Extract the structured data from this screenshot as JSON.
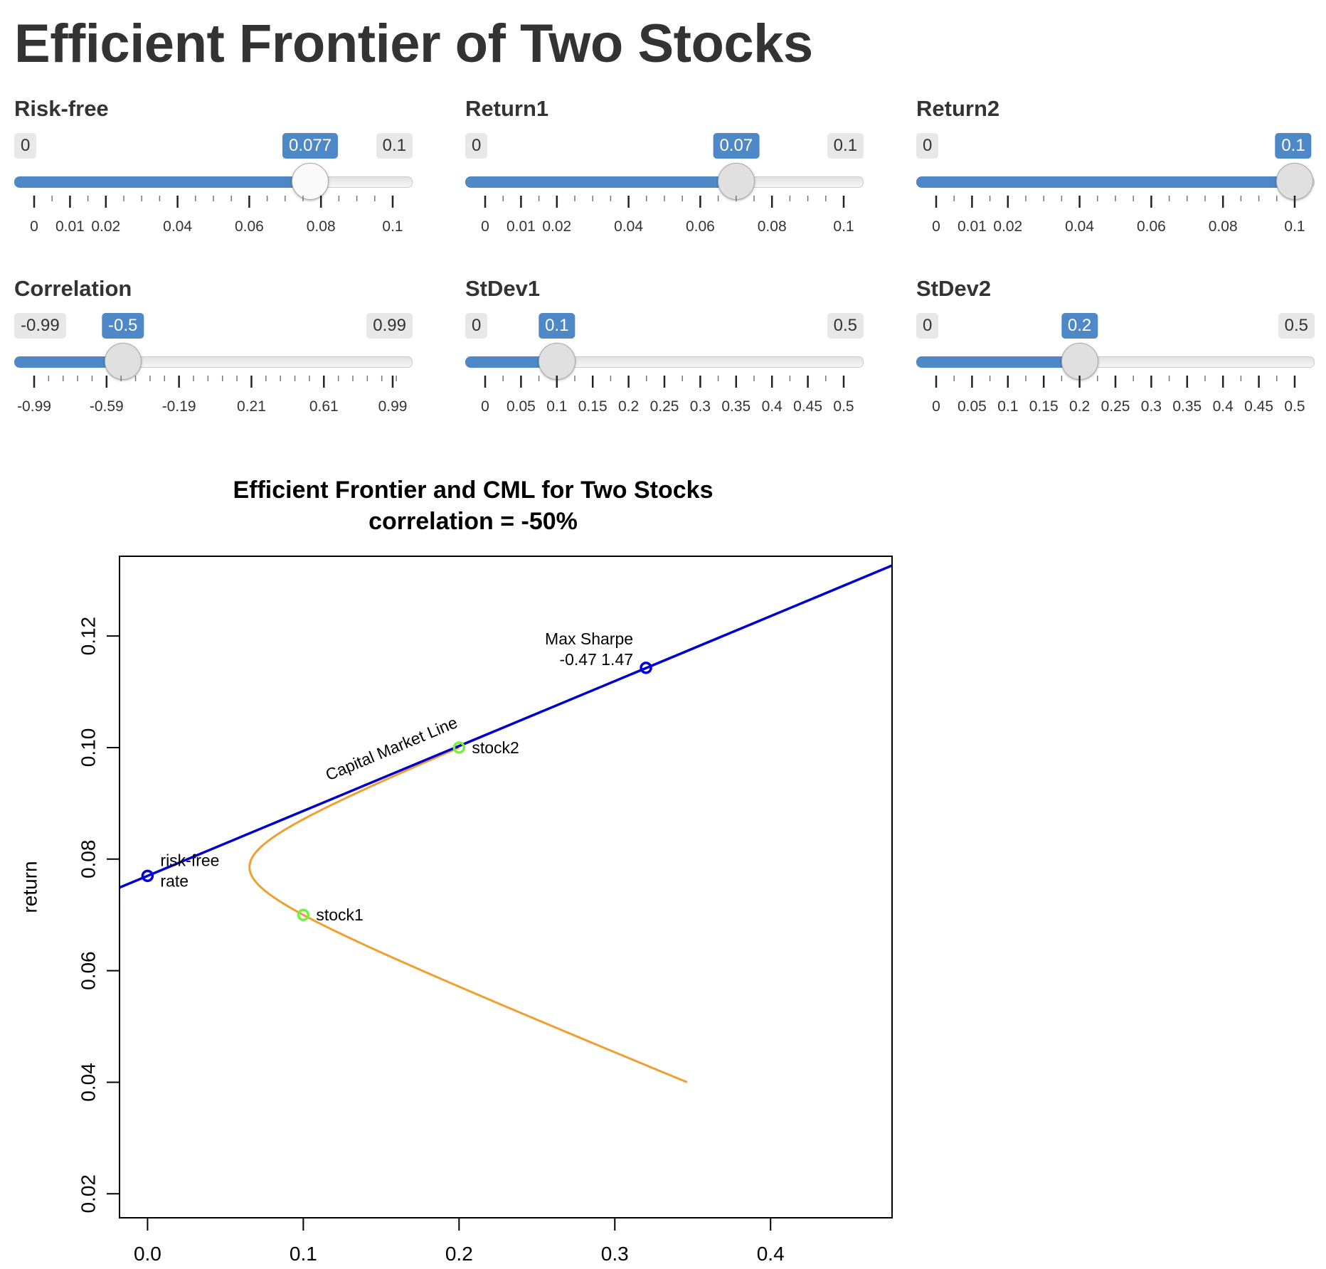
{
  "page": {
    "title": "Efficient Frontier of Two Stocks"
  },
  "sliders": [
    {
      "id": "risk-free",
      "label": "Risk-free",
      "min": 0,
      "max": 0.1,
      "value": 0.077,
      "min_label": "0",
      "max_label": "0.1",
      "value_label": "0.077",
      "handle": "white",
      "ticks": [
        "0",
        "0.01",
        "0.02",
        "0.04",
        "0.06",
        "0.08",
        "0.1"
      ],
      "tick_values": [
        0,
        0.01,
        0.02,
        0.04,
        0.06,
        0.08,
        0.1
      ],
      "minor_step": 0.005
    },
    {
      "id": "return1",
      "label": "Return1",
      "min": 0,
      "max": 0.1,
      "value": 0.07,
      "min_label": "0",
      "max_label": "0.1",
      "value_label": "0.07",
      "handle": "grey",
      "ticks": [
        "0",
        "0.01",
        "0.02",
        "0.04",
        "0.06",
        "0.08",
        "0.1"
      ],
      "tick_values": [
        0,
        0.01,
        0.02,
        0.04,
        0.06,
        0.08,
        0.1
      ],
      "minor_step": 0.005
    },
    {
      "id": "return2",
      "label": "Return2",
      "min": 0,
      "max": 0.1,
      "value": 0.1,
      "min_label": "0",
      "max_label": "",
      "value_label": "0.1",
      "handle": "grey",
      "ticks": [
        "0",
        "0.01",
        "0.02",
        "0.04",
        "0.06",
        "0.08",
        "0.1"
      ],
      "tick_values": [
        0,
        0.01,
        0.02,
        0.04,
        0.06,
        0.08,
        0.1
      ],
      "minor_step": 0.005
    },
    {
      "id": "correlation",
      "label": "Correlation",
      "min": -0.99,
      "max": 0.99,
      "value": -0.5,
      "min_label": "-0.99",
      "max_label": "0.99",
      "value_label": "-0.5",
      "handle": "grey",
      "ticks": [
        "-0.99",
        "-0.59",
        "-0.19",
        "0.21",
        "0.61",
        "0.99"
      ],
      "tick_values": [
        -0.99,
        -0.59,
        -0.19,
        0.21,
        0.61,
        0.99
      ],
      "minor_step": 0.08
    },
    {
      "id": "stdev1",
      "label": "StDev1",
      "min": 0,
      "max": 0.5,
      "value": 0.1,
      "min_label": "0",
      "max_label": "0.5",
      "value_label": "0.1",
      "handle": "grey",
      "ticks": [
        "0",
        "0.05",
        "0.1",
        "0.15",
        "0.2",
        "0.25",
        "0.3",
        "0.35",
        "0.4",
        "0.45",
        "0.5"
      ],
      "tick_values": [
        0,
        0.05,
        0.1,
        0.15,
        0.2,
        0.25,
        0.3,
        0.35,
        0.4,
        0.45,
        0.5
      ],
      "minor_step": 0.025
    },
    {
      "id": "stdev2",
      "label": "StDev2",
      "min": 0,
      "max": 0.5,
      "value": 0.2,
      "min_label": "0",
      "max_label": "0.5",
      "value_label": "0.2",
      "handle": "grey",
      "ticks": [
        "0",
        "0.05",
        "0.1",
        "0.15",
        "0.2",
        "0.25",
        "0.3",
        "0.35",
        "0.4",
        "0.45",
        "0.5"
      ],
      "tick_values": [
        0,
        0.05,
        0.1,
        0.15,
        0.2,
        0.25,
        0.3,
        0.35,
        0.4,
        0.45,
        0.5
      ],
      "minor_step": 0.025
    }
  ],
  "chart_data": {
    "type": "line",
    "title": "Efficient Frontier and CML for Two Stocks",
    "subtitle": "correlation = -50%",
    "xlabel": "",
    "ylabel": "return",
    "xlim": [
      -0.018,
      0.478
    ],
    "ylim": [
      0.0157,
      0.1343
    ],
    "x_ticks": [
      "0.0",
      "0.1",
      "0.2",
      "0.3",
      "0.4"
    ],
    "x_tick_values": [
      0,
      0.1,
      0.2,
      0.3,
      0.4
    ],
    "y_ticks": [
      "0.02",
      "0.04",
      "0.06",
      "0.08",
      "0.10",
      "0.12"
    ],
    "y_tick_values": [
      0.02,
      0.04,
      0.06,
      0.08,
      0.1,
      0.12
    ],
    "grid": false,
    "frontier": {
      "color": "#f0a030",
      "r1": 0.07,
      "r2": 0.1,
      "s1": 0.1,
      "s2": 0.2,
      "rho": -0.5,
      "w_range": [
        -1,
        2
      ],
      "y_range": [
        0.04,
        0.1
      ]
    },
    "cml": {
      "color": "#0000cc",
      "intercept": 0.077,
      "slope": 0.1164,
      "label": "Capital Market Line"
    },
    "points": [
      {
        "name": "risk-free",
        "x": 0,
        "y": 0.077,
        "color": "#0000dd",
        "label_lines": [
          "risk-free",
          "rate"
        ]
      },
      {
        "name": "max-sharpe",
        "x": 0.32,
        "y": 0.1143,
        "color": "#0000dd",
        "label_lines": [
          "Max Sharpe",
          "-0.47 1.47"
        ]
      },
      {
        "name": "stock1",
        "x": 0.1,
        "y": 0.07,
        "color": "#77ee44",
        "label_lines": [
          "stock1"
        ]
      },
      {
        "name": "stock2",
        "x": 0.2,
        "y": 0.1,
        "color": "#77ee44",
        "label_lines": [
          "stock2"
        ]
      }
    ]
  }
}
